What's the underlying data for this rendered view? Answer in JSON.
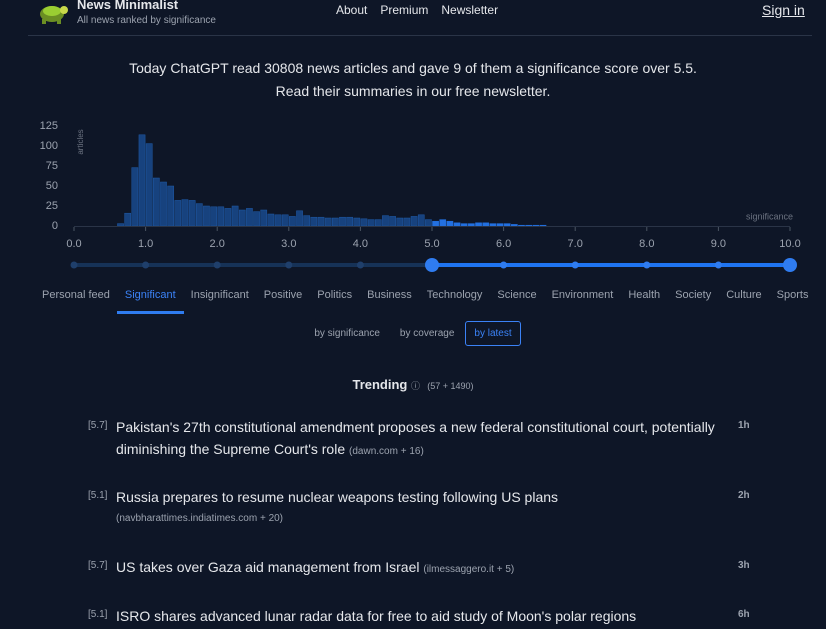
{
  "header": {
    "title": "News Minimalist",
    "subtitle": "All news ranked by significance",
    "nav": [
      "About",
      "Premium",
      "Newsletter"
    ],
    "sign_in": "Sign in"
  },
  "intro": [
    "Today ChatGPT read 30808 news articles and gave 9 of them a significance score over 5.5.",
    "Read their summaries in our free newsletter."
  ],
  "chart_data": {
    "type": "histogram",
    "y_label": "articles",
    "x_label": "significance",
    "bins": [
      0.6,
      0.7,
      0.8,
      0.9,
      1.0,
      1.1,
      1.2,
      1.3,
      1.4,
      1.5,
      1.6,
      1.7,
      1.8,
      1.9,
      2.0,
      2.1,
      2.2,
      2.3,
      2.4,
      2.5,
      2.6,
      2.7,
      2.8,
      2.9,
      3.0,
      3.1,
      3.2,
      3.3,
      3.4,
      3.5,
      3.6,
      3.7,
      3.8,
      3.9,
      4.0,
      4.1,
      4.2,
      4.3,
      4.4,
      4.5,
      4.6,
      4.7,
      4.8,
      4.9,
      5.0,
      5.1,
      5.2,
      5.3,
      5.4,
      5.5,
      5.6,
      5.7,
      5.8,
      5.9,
      6.0,
      6.1,
      6.2,
      6.3,
      6.4,
      6.5,
      6.6
    ],
    "counts": [
      3,
      16,
      73,
      114,
      103,
      60,
      55,
      50,
      32,
      33,
      32,
      28,
      25,
      24,
      24,
      22,
      25,
      20,
      22,
      18,
      20,
      15,
      14,
      14,
      12,
      19,
      13,
      11,
      11,
      10,
      10,
      11,
      11,
      10,
      9,
      8,
      8,
      13,
      12,
      10,
      10,
      12,
      14,
      8,
      6,
      8,
      6,
      4,
      3,
      3,
      4,
      4,
      3,
      3,
      3,
      2,
      1,
      1,
      1,
      1
    ],
    "color": "#17427e",
    "highlight_color": "#2370e0",
    "selected_range": [
      5,
      10
    ],
    "xlim": [
      0,
      10
    ],
    "ylim": [
      0,
      125
    ],
    "xticks": [
      {
        "value": 0,
        "label": "0.0"
      },
      {
        "value": 1,
        "label": "1.0"
      },
      {
        "value": 2,
        "label": "2.0"
      },
      {
        "value": 3,
        "label": "3.0"
      },
      {
        "value": 4,
        "label": "4.0"
      },
      {
        "value": 5,
        "label": "5.0"
      },
      {
        "value": 6,
        "label": "6.0"
      },
      {
        "value": 7,
        "label": "7.0"
      },
      {
        "value": 8,
        "label": "8.0"
      },
      {
        "value": 9,
        "label": "9.0"
      },
      {
        "value": 10,
        "label": "10.0"
      }
    ],
    "yticks": [
      0,
      25,
      50,
      75,
      100,
      125
    ]
  },
  "tabs": {
    "items": [
      "Personal feed",
      "Significant",
      "Insignificant",
      "Positive",
      "Politics",
      "Business",
      "Technology",
      "Science",
      "Environment",
      "Health",
      "Society",
      "Culture",
      "Sports"
    ],
    "active": 1
  },
  "sort": {
    "items": [
      "by significance",
      "by coverage",
      "by latest"
    ],
    "active": 2
  },
  "trending": {
    "title": "Trending",
    "count": "(57 + 1490)"
  },
  "news": [
    {
      "score": "[5.7]",
      "title": "Pakistan's 27th constitutional amendment proposes a new federal constitutional court, potentially diminishing the Supreme Court's role",
      "source": "(dawn.com + 16)",
      "time": "1h"
    },
    {
      "score": "[5.1]",
      "title": "Russia prepares to resume nuclear weapons testing following US plans",
      "source": "(navbharattimes.indiatimes.com + 20)",
      "time": "2h"
    },
    {
      "score": "[5.7]",
      "title": "US takes over Gaza aid management from Israel",
      "source": "(ilmessaggero.it + 5)",
      "time": "3h"
    },
    {
      "score": "[5.1]",
      "title": "ISRO shares advanced lunar radar data for free to aid study of Moon's polar regions",
      "time": "6h"
    }
  ]
}
